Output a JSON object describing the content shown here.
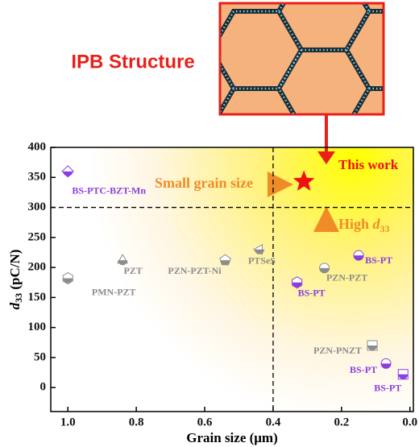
{
  "chart_data": {
    "type": "scatter",
    "inset_title": "IPB Structure",
    "x_label": "Grain size (μm)",
    "y_label": {
      "italic": "d",
      "sub": "33",
      "rest": " (pC/N)"
    },
    "xlim": [
      1.05,
      -0.01
    ],
    "ylim": [
      -40,
      400
    ],
    "xticks": [
      {
        "value": 1.0,
        "label": "1.0"
      },
      {
        "value": 0.8,
        "label": "0.8"
      },
      {
        "value": 0.6,
        "label": "0.6"
      },
      {
        "value": 0.4,
        "label": "0.4"
      },
      {
        "value": 0.2,
        "label": "0.2"
      },
      {
        "value": 0.0,
        "label": "0.0"
      }
    ],
    "yticks": [
      0,
      50,
      100,
      150,
      200,
      250,
      300,
      350,
      400
    ],
    "ref_x": 0.4,
    "ref_y": 300,
    "points": [
      {
        "label": "BS-PTC-BZT-Mn",
        "x": 1.0,
        "y": 360,
        "color": "#8a3ee0",
        "marker": "diamond"
      },
      {
        "label": "PZT",
        "x": 0.84,
        "y": 212,
        "color": "#8c8c8c",
        "marker": "triangle"
      },
      {
        "label": "PMN-PZT",
        "x": 1.0,
        "y": 182,
        "color": "#8c8c8c",
        "marker": "hexagon"
      },
      {
        "label": "PZN-PZT-Ni",
        "x": 0.54,
        "y": 212,
        "color": "#8c8c8c",
        "marker": "pentagon"
      },
      {
        "label": "PTSeS",
        "x": 0.44,
        "y": 230,
        "color": "#8c8c8c",
        "marker": "triangle-left"
      },
      {
        "label": "BS-PT",
        "x": 0.33,
        "y": 175,
        "color": "#8a3ee0",
        "marker": "hexagon"
      },
      {
        "label": "PZN-PZT",
        "x": 0.25,
        "y": 199,
        "color": "#8c8c8c",
        "marker": "circle"
      },
      {
        "label": "BS-PT",
        "x": 0.15,
        "y": 220,
        "color": "#8a3ee0",
        "marker": "circle"
      },
      {
        "label": "PZN-PNZT",
        "x": 0.11,
        "y": 70,
        "color": "#8c8c8c",
        "marker": "square"
      },
      {
        "label": "BS-PT",
        "x": 0.07,
        "y": 40,
        "color": "#8a3ee0",
        "marker": "circle"
      },
      {
        "label": "BS-PT",
        "x": 0.02,
        "y": 22,
        "color": "#8a3ee0",
        "marker": "square"
      }
    ],
    "highlight": {
      "label": "This work",
      "x": 0.31,
      "y": 343,
      "color": "#f01010"
    },
    "annotations": {
      "small_grain": "Small grain size",
      "high": "High ",
      "high_italic": "d",
      "high_sub": "33"
    }
  }
}
